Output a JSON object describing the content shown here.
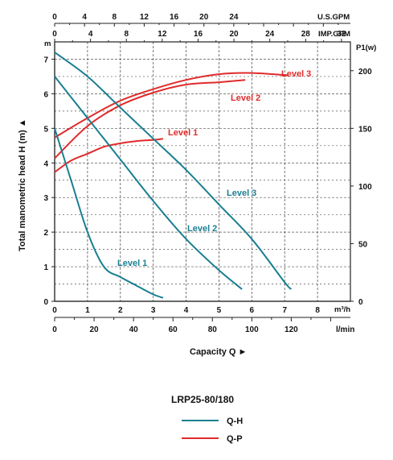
{
  "chart_data": {
    "type": "line",
    "model_title": "LRP25-80/180",
    "ylabel_left": "Total manometric head H (m) ▲",
    "ylabel_left_unit": "m",
    "ylabel_right": "P1(w)",
    "xlabel": "Capacity Q ►",
    "x_unit_m3h": "m³/h",
    "x_unit_lmin": "l/min",
    "top_axis_us_label": "U.S.GPM",
    "top_axis_imp_label": "IMP.GPM",
    "xlim_m3h": [
      0,
      9
    ],
    "ylim_head": [
      0,
      7.5
    ],
    "ylim_power": [
      0,
      225
    ],
    "grid": true,
    "ticks_m3h": [
      "0",
      "1",
      "2",
      "3",
      "4",
      "5",
      "6",
      "7",
      "8"
    ],
    "ticks_lmin": [
      "0",
      "20",
      "40",
      "60",
      "80",
      "100",
      "120"
    ],
    "ticks_us_gpm": [
      "0",
      "4",
      "8",
      "12",
      "16",
      "20",
      "24"
    ],
    "ticks_imp_gpm": [
      "0",
      "4",
      "8",
      "12",
      "16",
      "20",
      "24",
      "28",
      "32"
    ],
    "ticks_head": [
      "0",
      "1",
      "2",
      "3",
      "4",
      "5",
      "6",
      "7"
    ],
    "ticks_power": [
      "0",
      "50",
      "100",
      "150",
      "200"
    ],
    "colors": {
      "qh": "#1a7f92",
      "qp": "#e02b2b",
      "grid": "#555555"
    },
    "qh_series": [
      {
        "name": "Level 1",
        "x": [
          0,
          0.5,
          1.0,
          1.5,
          2.0,
          2.5,
          3.0,
          3.3
        ],
        "y": [
          5.0,
          3.5,
          2.0,
          1.0,
          0.7,
          0.45,
          0.2,
          0.1
        ]
      },
      {
        "name": "Level 2",
        "x": [
          0,
          1,
          2,
          3,
          4,
          5,
          5.7
        ],
        "y": [
          6.5,
          5.3,
          4.1,
          2.9,
          1.8,
          0.9,
          0.35
        ]
      },
      {
        "name": "Level 3",
        "x": [
          0,
          1,
          2,
          3,
          4,
          5,
          6,
          7,
          7.2
        ],
        "y": [
          7.2,
          6.5,
          5.6,
          4.7,
          3.8,
          2.8,
          1.8,
          0.55,
          0.35
        ]
      }
    ],
    "qp_series": [
      {
        "name": "Level 1",
        "x": [
          0,
          0.5,
          1.0,
          1.5,
          2.0,
          2.5,
          3.0,
          3.3
        ],
        "y": [
          112,
          122,
          128,
          134,
          137,
          139,
          140,
          141
        ]
      },
      {
        "name": "Level 2",
        "x": [
          0,
          1,
          2,
          3,
          4,
          5,
          5.8
        ],
        "y": [
          124,
          152,
          170,
          181,
          188,
          190,
          192
        ]
      },
      {
        "name": "Level 3",
        "x": [
          0,
          1,
          2,
          3,
          4,
          5,
          6,
          7.1
        ],
        "y": [
          142,
          159,
          174,
          184,
          192,
          197,
          198,
          196
        ]
      }
    ],
    "legend": [
      {
        "label": "Q-H",
        "color": "#1a7f92"
      },
      {
        "label": "Q-P",
        "color": "#e02b2b"
      }
    ]
  }
}
